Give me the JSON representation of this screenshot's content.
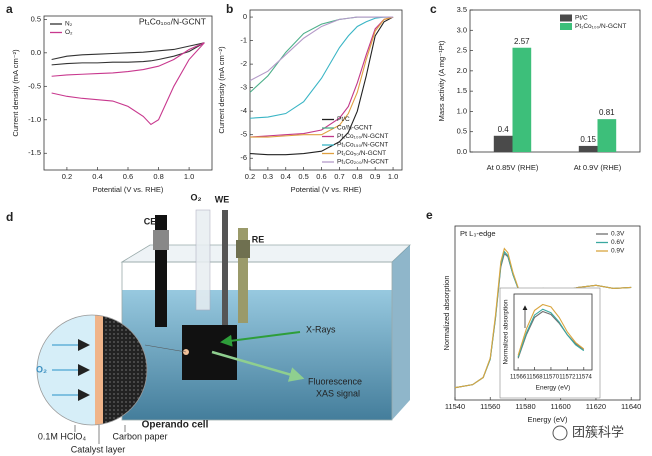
{
  "panel_labels": [
    "a",
    "b",
    "c",
    "d",
    "e"
  ],
  "chart_data": [
    {
      "type": "line",
      "title": "Pt₁Co₁₀₀/N-GCNT",
      "x_label": "Potential (V vs. RHE)",
      "y_label": "Current density (mA cm⁻²)",
      "x": [
        0.1,
        0.2,
        0.3,
        0.4,
        0.5,
        0.6,
        0.7,
        0.8,
        0.9,
        1.0,
        1.1,
        1.0,
        0.9,
        0.8,
        0.75,
        0.7,
        0.6,
        0.5,
        0.4,
        0.3,
        0.2,
        0.1
      ],
      "series": [
        {
          "name": "N₂",
          "color": "#333333",
          "values": [
            -0.1,
            -0.05,
            -0.03,
            -0.02,
            -0.01,
            0,
            0.01,
            0.03,
            0.05,
            0.1,
            0.15,
            0.02,
            -0.05,
            -0.1,
            -0.12,
            -0.13,
            -0.14,
            -0.14,
            -0.15,
            -0.15,
            -0.16,
            -0.18
          ]
        },
        {
          "name": "O₂",
          "color": "#c8388e",
          "values": [
            -0.35,
            -0.33,
            -0.32,
            -0.31,
            -0.3,
            -0.28,
            -0.25,
            -0.2,
            -0.1,
            0.05,
            0.15,
            -0.1,
            -0.5,
            -1.0,
            -1.07,
            -0.95,
            -0.8,
            -0.72,
            -0.7,
            -0.68,
            -0.65,
            -0.6
          ]
        }
      ],
      "xlim": [
        0.05,
        1.15
      ],
      "ylim": [
        -1.75,
        0.55
      ],
      "xticks": [
        0.2,
        0.4,
        0.6,
        0.8,
        {
          "value": 1.0,
          "label": "1.0"
        }
      ],
      "yticks": [
        0.5,
        {
          "value": 0.0,
          "label": "0.0"
        },
        -0.5,
        {
          "value": -1.0,
          "label": "-1.0"
        },
        -1.5
      ],
      "legend": "upper left"
    },
    {
      "type": "line",
      "x_label": "Potential (V vs. RHE)",
      "y_label": "Current density (mA cm⁻²)",
      "x": [
        0.2,
        0.3,
        0.4,
        0.5,
        0.6,
        0.7,
        0.75,
        0.8,
        0.85,
        0.9,
        0.95,
        1.0
      ],
      "series": [
        {
          "name": "Pt/C",
          "color": "#222222",
          "values": [
            -5.8,
            -5.85,
            -5.85,
            -5.8,
            -5.7,
            -5.3,
            -4.9,
            -4.0,
            -2.5,
            -0.8,
            -0.2,
            0
          ]
        },
        {
          "name": "Co/N-GCNT",
          "color": "#4caf8a",
          "values": [
            -3.2,
            -2.5,
            -1.5,
            -0.7,
            -0.3,
            -0.1,
            -0.05,
            0,
            0,
            0,
            0,
            0
          ]
        },
        {
          "name": "Pt₁Co₁₀₀/N-GCNT",
          "color": "#c2388a",
          "values": [
            -5.1,
            -5.05,
            -5.0,
            -4.95,
            -4.8,
            -4.3,
            -3.8,
            -2.8,
            -1.6,
            -0.5,
            -0.1,
            0
          ]
        },
        {
          "name": "Pt₁Co₁₅₀/N-GCNT",
          "color": "#3ab5c5",
          "values": [
            -4.3,
            -4.25,
            -4.1,
            -3.6,
            -2.6,
            -1.3,
            -0.8,
            -0.4,
            -0.2,
            -0.05,
            0,
            0
          ]
        },
        {
          "name": "Pt₁Co₅₀/N-GCNT",
          "color": "#e0a040",
          "values": [
            -5.1,
            -5.1,
            -5.05,
            -5.0,
            -5.0,
            -4.6,
            -4.1,
            -3.2,
            -1.8,
            -0.6,
            -0.1,
            0
          ]
        },
        {
          "name": "Pt₁Co₂₀₀/N-GCNT",
          "color": "#b49ac8",
          "values": [
            -2.7,
            -2.3,
            -1.6,
            -0.9,
            -0.4,
            -0.1,
            -0.05,
            0,
            0,
            0,
            0,
            0
          ]
        }
      ],
      "xlim": [
        0.2,
        1.05
      ],
      "ylim": [
        -6.5,
        0.3
      ],
      "xticks": [
        0.2,
        0.3,
        0.4,
        0.5,
        0.6,
        0.7,
        0.8,
        0.9,
        {
          "value": 1.0,
          "label": "1.0"
        }
      ],
      "yticks": [
        0,
        -1,
        -2,
        -3,
        -4,
        -5,
        -6
      ],
      "legend": "lower right"
    },
    {
      "type": "bar",
      "y_label": "Mass activity (A mg⁻¹Pt)",
      "categories": [
        "At  0.85V (RHE)",
        "At  0.9V (RHE)"
      ],
      "series": [
        {
          "name": "Pt/C",
          "color": "#4a4a4a",
          "values": [
            0.4,
            0.15
          ]
        },
        {
          "name": "Pt₁Co₁₀₀/N-GCNT",
          "color": "#3dbf7a",
          "values": [
            2.57,
            0.81
          ]
        }
      ],
      "ylim": [
        0,
        3.5
      ],
      "yticks": [
        {
          "value": 0.0,
          "label": "0.0"
        },
        0.5,
        {
          "value": 1.0,
          "label": "1.0"
        },
        1.5,
        {
          "value": 2.0,
          "label": "2.0"
        },
        2.5,
        {
          "value": 3.0,
          "label": "3.0"
        },
        3.5
      ],
      "legend": "upper right"
    },
    {
      "type": "line",
      "annotation": "Pt L₃-edge",
      "x_label": "Energy (eV)",
      "y_label": "Normalized absorption",
      "x": [
        11540,
        11550,
        11556,
        11560,
        11563,
        11566,
        11568,
        11570,
        11573,
        11576,
        11580,
        11585,
        11590,
        11600,
        11610,
        11620,
        11630,
        11640
      ],
      "series": [
        {
          "name": "0.3V",
          "color": "#707070",
          "values": [
            0.02,
            0.05,
            0.12,
            0.3,
            0.7,
            1.2,
            1.33,
            1.3,
            1.12,
            0.98,
            0.93,
            0.97,
            0.99,
            0.96,
            1.0,
            1.02,
            0.99,
            1.0
          ]
        },
        {
          "name": "0.6V",
          "color": "#3aa8a0",
          "values": [
            0.02,
            0.05,
            0.12,
            0.3,
            0.71,
            1.22,
            1.35,
            1.31,
            1.12,
            0.98,
            0.93,
            0.97,
            0.99,
            0.96,
            1.0,
            1.02,
            0.99,
            1.0
          ]
        },
        {
          "name": "0.9V",
          "color": "#d9a640",
          "values": [
            0.02,
            0.05,
            0.12,
            0.31,
            0.73,
            1.25,
            1.38,
            1.34,
            1.14,
            0.99,
            0.93,
            0.97,
            0.99,
            0.96,
            1.0,
            1.02,
            0.99,
            1.0
          ]
        }
      ],
      "xlim": [
        11540,
        11645
      ],
      "ylim": [
        -0.1,
        1.6
      ],
      "xticks": [
        11540,
        11560,
        11580,
        11600,
        11620,
        11640
      ],
      "legend": "upper right"
    },
    {
      "type": "line",
      "x_label": "Energy (eV)",
      "y_label": "Normalized absorption",
      "x": [
        11566,
        11567,
        11568,
        11569,
        11570,
        11571,
        11572,
        11573,
        11574
      ],
      "series": [
        {
          "name": "0.3V",
          "color": "#707070",
          "values": [
            0.2,
            0.6,
            0.9,
            1.0,
            0.95,
            0.8,
            0.6,
            0.45,
            0.35
          ]
        },
        {
          "name": "0.6V",
          "color": "#3aa8a0",
          "values": [
            0.22,
            0.63,
            0.94,
            1.04,
            0.98,
            0.82,
            0.6,
            0.43,
            0.33
          ]
        },
        {
          "name": "0.9V",
          "color": "#d9a640",
          "values": [
            0.25,
            0.7,
            1.02,
            1.12,
            1.08,
            0.9,
            0.65,
            0.47,
            0.36
          ]
        }
      ],
      "xlim": [
        11565.5,
        11575
      ],
      "ylim": [
        0,
        1.3
      ],
      "xticks": [
        11566,
        11568,
        11570,
        11572,
        11574
      ]
    }
  ],
  "diagram": {
    "counter_electrode": "CE",
    "gas": "O₂",
    "working_electrode": "WE",
    "reference_electrode": "RE",
    "xray": "X-Rays",
    "fluorescence": [
      "Fluorescence",
      "XAS signal"
    ],
    "cell": "Operando cell",
    "electrolyte": "0.1M HClO₄",
    "carbon": "Carbon paper",
    "catalyst": "Catalyst layer",
    "inlet": "O₂"
  },
  "watermark": "团簇科学"
}
